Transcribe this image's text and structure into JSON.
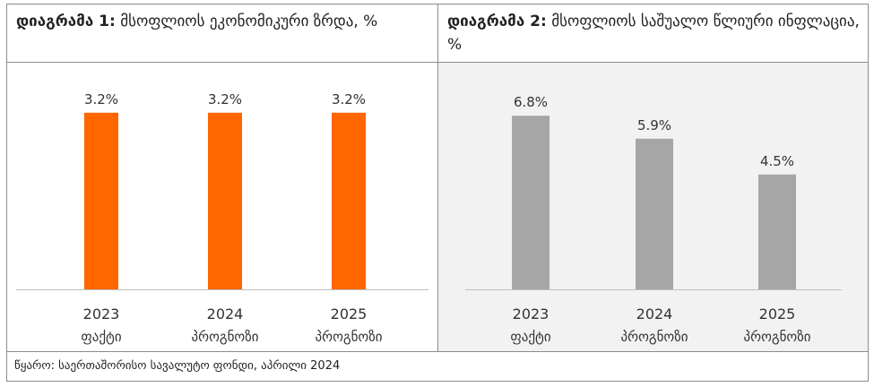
{
  "charts": [
    {
      "title_bold": "დიაგრამა 1:",
      "title_rest": " მსოფლიოს ეკონომიკური ზრდა, %",
      "chart_data": {
        "type": "bar",
        "categories": [
          "2023",
          "2024",
          "2025"
        ],
        "sublabels": [
          "ფაქტი",
          "პროგნოზი",
          "პროგნოზი"
        ],
        "values": [
          3.2,
          3.2,
          3.2
        ],
        "value_labels": [
          "3.2%",
          "3.2%",
          "3.2%"
        ],
        "color": "#FF6600",
        "ylim": [
          0,
          3.7
        ]
      }
    },
    {
      "title_bold": "დიაგრამა 2:",
      "title_rest": " მსოფლიოს საშუალო წლიური ინფლაცია, %",
      "chart_data": {
        "type": "bar",
        "categories": [
          "2023",
          "2024",
          "2025"
        ],
        "sublabels": [
          "ფაქტი",
          "პროგნოზი",
          "პროგნოზი"
        ],
        "values": [
          6.8,
          5.9,
          4.5
        ],
        "value_labels": [
          "6.8%",
          "5.9%",
          "4.5%"
        ],
        "color": "#A6A6A6",
        "ylim": [
          0,
          8.0
        ]
      }
    }
  ],
  "source": "წყარო: საერთაშორისო სავალუტო ფონდი, აპრილი 2024"
}
